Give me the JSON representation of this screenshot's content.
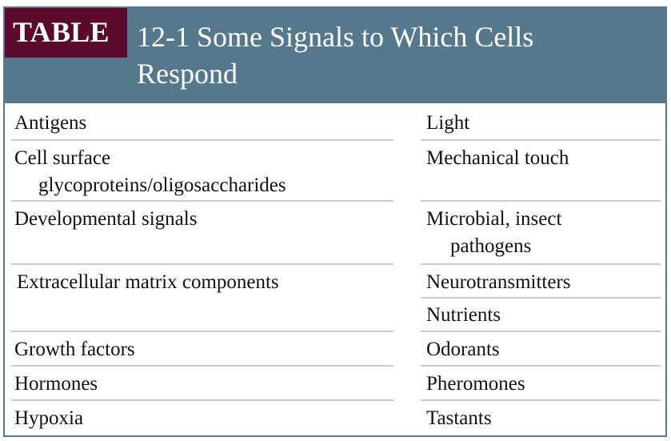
{
  "table": {
    "badge": "TABLE",
    "title_line1": "12-1 Some Signals to Which Cells",
    "title_line2": "Respond",
    "left_column": {
      "r1": "Antigens",
      "r2a": "Cell surface",
      "r2b": "glycoproteins/oligosaccharides",
      "r3": "Developmental signals",
      "r4": "Extracellular matrix components",
      "r5": "Growth factors",
      "r6": "Hormones",
      "r7": "Hypoxia"
    },
    "right_column": {
      "r1": "Light",
      "r2": "Mechanical touch",
      "r3a": "Microbial, insect",
      "r3b": "pathogens",
      "r4": "Neurotransmitters",
      "r5": "Nutrients",
      "r6": "Odorants",
      "r7": "Pheromones",
      "r8": "Tastants"
    }
  },
  "colors": {
    "header_bg": "#55788c",
    "badge_bg": "#5b0a2e",
    "row_rule": "#c9c9c9"
  }
}
